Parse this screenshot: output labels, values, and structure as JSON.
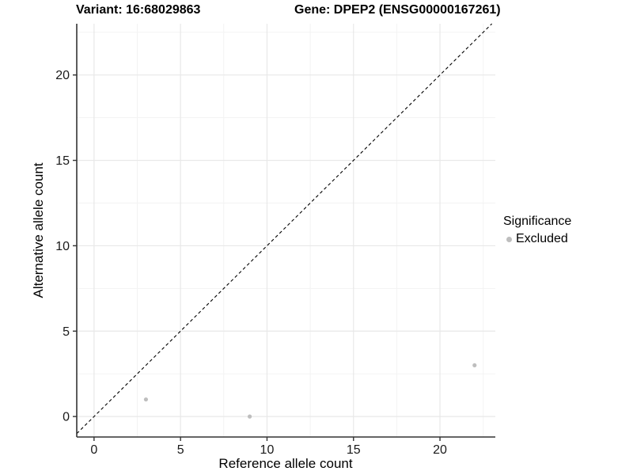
{
  "header": {
    "variant_title": "Variant: 16:68029863",
    "gene_title": "Gene: DPEP2 (ENSG00000167261)"
  },
  "legend": {
    "title": "Significance",
    "items": [
      {
        "label": "Excluded",
        "color": "#bebebe"
      }
    ]
  },
  "chart_data": {
    "type": "scatter",
    "xlabel": "Reference allele count",
    "ylabel": "Alternative allele count",
    "xlim": [
      -1,
      23.2
    ],
    "ylim": [
      -1.2,
      23
    ],
    "x_ticks": [
      0,
      5,
      10,
      15,
      20
    ],
    "y_ticks": [
      0,
      5,
      10,
      15,
      20
    ],
    "x_minor_ticks": [
      2.5,
      7.5,
      12.5,
      17.5,
      22.5
    ],
    "y_minor_ticks": [
      2.5,
      7.5,
      12.5,
      17.5,
      22.5
    ],
    "series": [
      {
        "name": "Excluded",
        "color": "#bebebe",
        "points": [
          {
            "x": 3,
            "y": 1
          },
          {
            "x": 9,
            "y": 0
          },
          {
            "x": 22,
            "y": 3
          }
        ]
      }
    ],
    "identity_line": {
      "style": "dashed",
      "slope": 1,
      "intercept": 0,
      "color": "#000000"
    },
    "grid": {
      "major_color": "#e8e8e8",
      "minor_color": "#f3f3f3"
    },
    "axis_color": "#333333",
    "tick_label_color": "#1a1a1a",
    "legend_position": "right",
    "background": "#ffffff"
  }
}
